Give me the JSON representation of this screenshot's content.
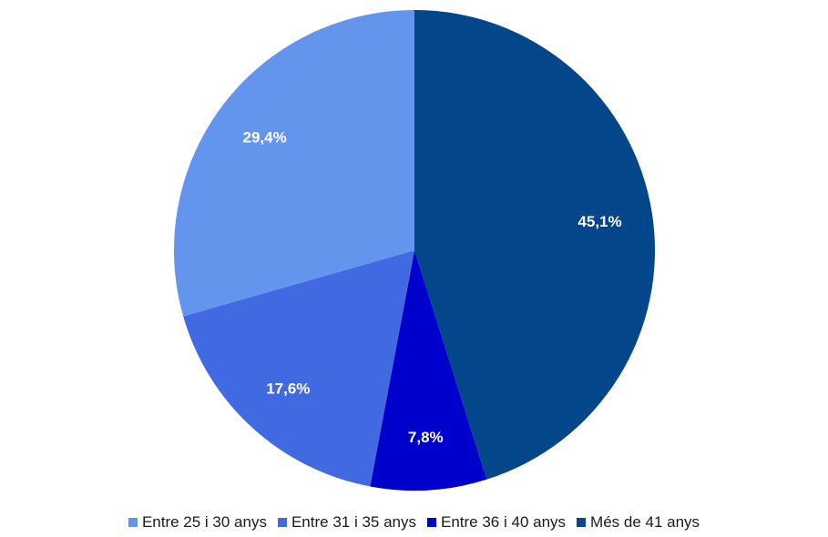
{
  "chart_data": {
    "type": "pie",
    "title": "",
    "categories": [
      "Entre 25 i 30 anys",
      "Entre 31 i 35 anys",
      "Entre 36 i 40 anys",
      "Més de 41 anys"
    ],
    "values": [
      29.4,
      17.6,
      7.8,
      45.1
    ],
    "labels": [
      "29,4%",
      "17,6%",
      "7,8%",
      "45,1%"
    ],
    "colors": [
      "#6495ED",
      "#4169E1",
      "#0000CD",
      "#03468A"
    ],
    "start_slice": "Més de 41 anys",
    "direction": "clockwise",
    "legend_position": "bottom"
  }
}
